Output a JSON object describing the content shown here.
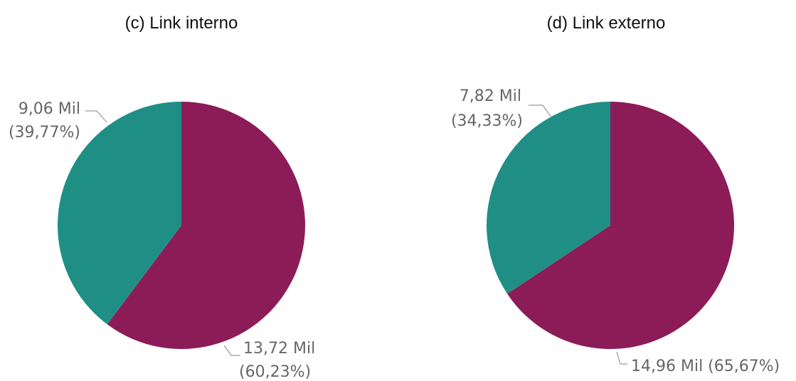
{
  "chart_data": [
    {
      "type": "pie",
      "title": "(c) Link interno",
      "colors": [
        "#8c1c57",
        "#1f8f85"
      ],
      "slices": [
        {
          "value": 13.72,
          "percent": 60.23,
          "label_line1": "13,72 Mil",
          "label_line2": "(60,23%)"
        },
        {
          "value": 9.06,
          "percent": 39.77,
          "label_line1": "9,06 Mil",
          "label_line2": "(39,77%)"
        }
      ]
    },
    {
      "type": "pie",
      "title": "(d) Link externo",
      "colors": [
        "#8c1c57",
        "#1f8f85"
      ],
      "slices": [
        {
          "value": 14.96,
          "percent": 65.67,
          "label_line1": "14,96 Mil (65,67%)",
          "label_line2": ""
        },
        {
          "value": 7.82,
          "percent": 34.33,
          "label_line1": "7,82 Mil",
          "label_line2": "(34,33%)"
        }
      ]
    }
  ]
}
